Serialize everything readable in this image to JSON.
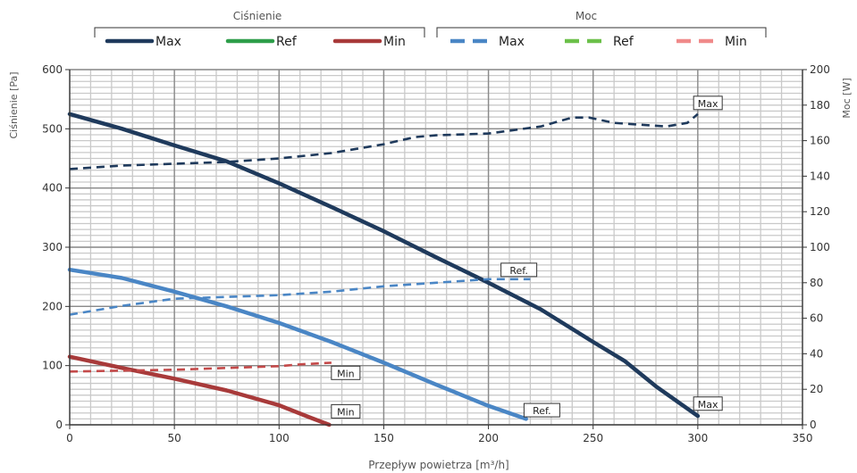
{
  "legend": {
    "pressure_group": "Ciśnienie",
    "power_group": "Moc",
    "pressure_items": [
      {
        "label": "Max",
        "color": "#1f3a5c",
        "dash": false
      },
      {
        "label": "Ref",
        "color": "#2e9e4a",
        "dash": false
      },
      {
        "label": "Min",
        "color": "#a83a3a",
        "dash": false
      }
    ],
    "power_items": [
      {
        "label": "Max",
        "color": "#4a86c5",
        "dash": true
      },
      {
        "label": "Ref",
        "color": "#6cc04a",
        "dash": true
      },
      {
        "label": "Min",
        "color": "#f08a8a",
        "dash": true
      }
    ]
  },
  "chart_data": {
    "type": "line",
    "xlabel": "Przepływ powietrza [m³/h]",
    "ylabel": "Ciśnienie [Pa]",
    "y2label": "Moc [W]",
    "xlim": [
      0,
      350
    ],
    "ylim": [
      0,
      600
    ],
    "y2lim": [
      0,
      200
    ],
    "x_ticks": [
      0,
      50,
      100,
      150,
      200,
      250,
      300,
      350
    ],
    "y_ticks": [
      0,
      100,
      200,
      300,
      400,
      500,
      600
    ],
    "y2_ticks": [
      0,
      20,
      40,
      60,
      80,
      100,
      120,
      140,
      160,
      180,
      200
    ],
    "grid": true,
    "series": [
      {
        "axis": "y",
        "dash": false,
        "color": "#1f3a5c",
        "points": [
          [
            0,
            525
          ],
          [
            25,
            500
          ],
          [
            50,
            472
          ],
          [
            75,
            445
          ],
          [
            100,
            408
          ],
          [
            125,
            368
          ],
          [
            150,
            327
          ],
          [
            175,
            283
          ],
          [
            200,
            240
          ],
          [
            225,
            195
          ],
          [
            250,
            140
          ],
          [
            265,
            108
          ],
          [
            280,
            65
          ],
          [
            290,
            40
          ],
          [
            300,
            15
          ]
        ]
      },
      {
        "axis": "y",
        "dash": false,
        "color": "#4a86c5",
        "points": [
          [
            0,
            262
          ],
          [
            25,
            248
          ],
          [
            50,
            225
          ],
          [
            75,
            200
          ],
          [
            100,
            172
          ],
          [
            125,
            140
          ],
          [
            150,
            105
          ],
          [
            175,
            68
          ],
          [
            200,
            32
          ],
          [
            218,
            10
          ]
        ]
      },
      {
        "axis": "y",
        "dash": false,
        "color": "#a83a3a",
        "points": [
          [
            0,
            115
          ],
          [
            25,
            96
          ],
          [
            50,
            78
          ],
          [
            75,
            58
          ],
          [
            100,
            33
          ],
          [
            115,
            12
          ],
          [
            124,
            0
          ]
        ]
      },
      {
        "axis": "y2",
        "dash": true,
        "color": "#1f3a5c",
        "points": [
          [
            0,
            144
          ],
          [
            25,
            146
          ],
          [
            50,
            147
          ],
          [
            75,
            148
          ],
          [
            100,
            150
          ],
          [
            125,
            153
          ],
          [
            150,
            158
          ],
          [
            165,
            162
          ],
          [
            175,
            163
          ],
          [
            200,
            164
          ],
          [
            225,
            168
          ],
          [
            240,
            173
          ],
          [
            248,
            173
          ],
          [
            260,
            170
          ],
          [
            285,
            168
          ],
          [
            295,
            170
          ],
          [
            300,
            175
          ]
        ]
      },
      {
        "axis": "y2",
        "dash": true,
        "color": "#4a86c5",
        "points": [
          [
            0,
            62
          ],
          [
            25,
            67
          ],
          [
            50,
            71
          ],
          [
            75,
            72
          ],
          [
            100,
            73
          ],
          [
            125,
            75
          ],
          [
            150,
            78
          ],
          [
            175,
            80
          ],
          [
            200,
            82
          ],
          [
            220,
            82
          ]
        ]
      },
      {
        "axis": "y2",
        "dash": true,
        "color": "#c44a4a",
        "points": [
          [
            0,
            30
          ],
          [
            50,
            31
          ],
          [
            75,
            32
          ],
          [
            100,
            33
          ],
          [
            110,
            34
          ],
          [
            125,
            35
          ]
        ]
      }
    ],
    "annotations": [
      {
        "label": "Max",
        "x": 298,
        "y2": 181
      },
      {
        "label": "Ref.",
        "x": 206,
        "y2": 87
      },
      {
        "label": "Min",
        "x": 125,
        "y2": 29
      },
      {
        "label": "Max",
        "x": 298,
        "y": 35
      },
      {
        "label": "Ref.",
        "x": 217,
        "y": 24
      },
      {
        "label": "Min",
        "x": 125,
        "y": 22
      }
    ]
  }
}
